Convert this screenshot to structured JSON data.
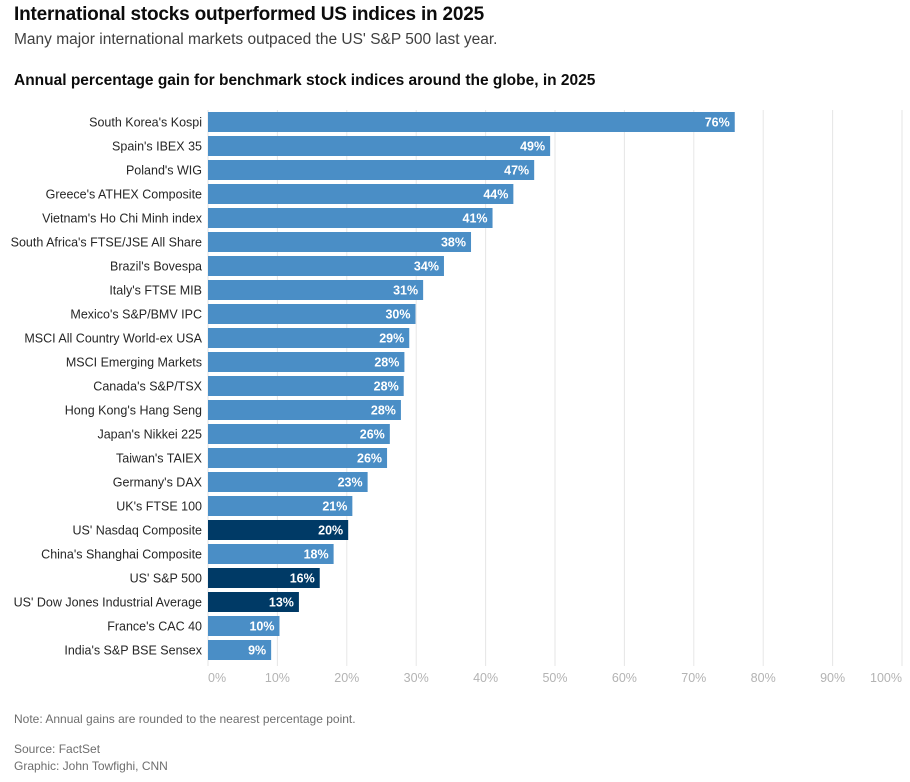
{
  "header": {
    "title": "International stocks outperformed US indices in 2025",
    "subtitle": "Many major international markets outpaced the US' S&P 500 last year."
  },
  "chart_data": {
    "type": "bar",
    "orientation": "horizontal",
    "title": "Annual percentage gain for benchmark stock indices around the globe, in 2025",
    "xlabel": "",
    "ylabel": "",
    "xlim": [
      0,
      100
    ],
    "x_ticks": [
      0,
      10,
      20,
      30,
      40,
      50,
      60,
      70,
      80,
      90,
      100
    ],
    "x_tick_labels": [
      "0%",
      "10%",
      "20%",
      "30%",
      "40%",
      "50%",
      "60%",
      "70%",
      "80%",
      "90%",
      "100%"
    ],
    "grid": true,
    "colors": {
      "international": "#4a8ec6",
      "us": "#003a66",
      "grid": "#e6e6e6",
      "tick_text": "#b3b3b3"
    },
    "categories": [
      "South Korea's Kospi",
      "Spain's IBEX 35",
      "Poland's WIG",
      "Greece's ATHEX Composite",
      "Vietnam's Ho Chi Minh index",
      "South Africa's FTSE/JSE All Share",
      "Brazil's Bovespa",
      "Italy's FTSE MIB",
      "Mexico's S&P/BMV IPC",
      "MSCI All Country World-ex USA",
      "MSCI Emerging Markets",
      "Canada's S&P/TSX",
      "Hong Kong's Hang Seng",
      "Japan's Nikkei 225",
      "Taiwan's TAIEX",
      "Germany's DAX",
      "UK's FTSE 100",
      "US' Nasdaq Composite",
      "China's Shanghai Composite",
      "US' S&P 500",
      "US' Dow Jones Industrial Average",
      "France's CAC 40",
      "India's S&P BSE Sensex"
    ],
    "values": [
      75.9,
      49.3,
      47.0,
      44.0,
      41.0,
      37.9,
      34.0,
      31.0,
      29.9,
      29.0,
      28.3,
      28.2,
      27.8,
      26.2,
      25.8,
      23.0,
      20.8,
      20.2,
      18.1,
      16.1,
      13.1,
      10.3,
      9.1
    ],
    "data_labels": [
      "76%",
      "49%",
      "47%",
      "44%",
      "41%",
      "38%",
      "34%",
      "31%",
      "30%",
      "29%",
      "28%",
      "28%",
      "28%",
      "26%",
      "26%",
      "23%",
      "21%",
      "20%",
      "18%",
      "16%",
      "13%",
      "10%",
      "9%"
    ],
    "highlighted": [
      "US' Nasdaq Composite",
      "US' S&P 500",
      "US' Dow Jones Industrial Average"
    ]
  },
  "footer": {
    "note": "Note: Annual gains are rounded to the nearest percentage point.",
    "source": "Source: FactSet",
    "graphic": "Graphic: John Towfighi, CNN"
  }
}
